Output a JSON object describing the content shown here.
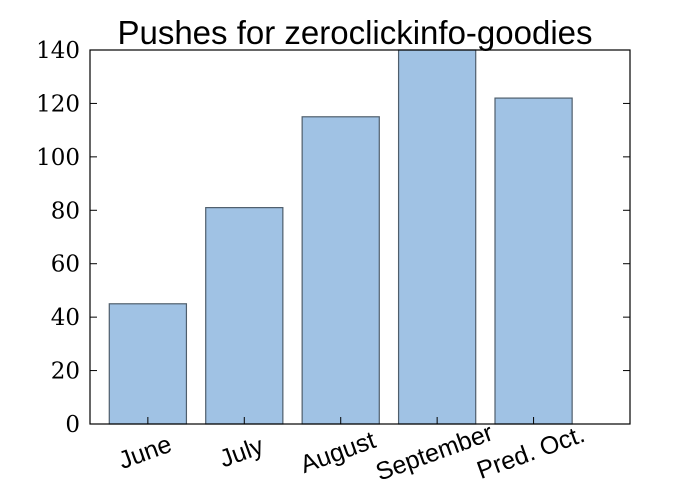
{
  "chart_data": {
    "type": "bar",
    "title": "Pushes for zeroclickinfo-goodies",
    "xlabel": "",
    "ylabel": "",
    "categories": [
      "June",
      "July",
      "August",
      "September",
      "Pred. Oct."
    ],
    "values": [
      45,
      81,
      115,
      140,
      122
    ],
    "ylim": [
      0,
      140
    ],
    "yticks": [
      0,
      20,
      40,
      60,
      80,
      100,
      120,
      140
    ],
    "xtick_rotation_deg": -20,
    "grid": false,
    "bar_color": "#a0c2e4",
    "bar_edge_color": "#4f5e6c"
  }
}
